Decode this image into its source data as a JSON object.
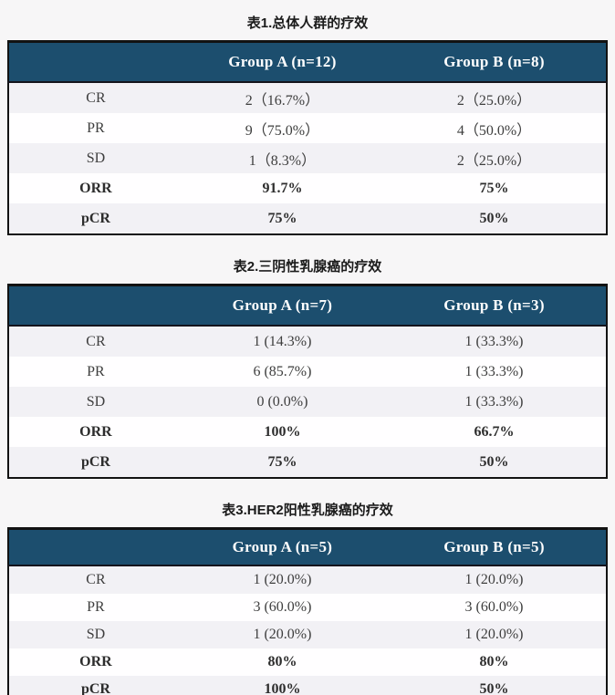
{
  "colors": {
    "page_background": "#f7f6f7",
    "header_background": "#1c4e6e",
    "header_text": "#ffffff",
    "row_alt_background": "#f2f1f5",
    "row_background": "#fffeff",
    "table_border": "#121212",
    "cell_text": "#3e3e3e",
    "title_text": "#1b1b1b"
  },
  "tables": [
    {
      "title": "表1.总体人群的疗效",
      "columns": [
        "",
        "Group A (n=12)",
        "Group B (n=8)"
      ],
      "rows": [
        {
          "label": "CR",
          "group_a": "2（16.7%）",
          "group_b": "2（25.0%）",
          "bold": false
        },
        {
          "label": "PR",
          "group_a": "9（75.0%）",
          "group_b": "4（50.0%）",
          "bold": false
        },
        {
          "label": "SD",
          "group_a": "1（8.3%）",
          "group_b": "2（25.0%）",
          "bold": false
        },
        {
          "label": "ORR",
          "group_a": "91.7%",
          "group_b": "75%",
          "bold": true
        },
        {
          "label": "pCR",
          "group_a": "75%",
          "group_b": "50%",
          "bold": true
        }
      ]
    },
    {
      "title": "表2.三阴性乳腺癌的疗效",
      "columns": [
        "",
        "Group A (n=7)",
        "Group B (n=3)"
      ],
      "rows": [
        {
          "label": "CR",
          "group_a": "1 (14.3%)",
          "group_b": "1 (33.3%)",
          "bold": false
        },
        {
          "label": "PR",
          "group_a": "6 (85.7%)",
          "group_b": "1 (33.3%)",
          "bold": false
        },
        {
          "label": "SD",
          "group_a": "0 (0.0%)",
          "group_b": "1 (33.3%)",
          "bold": false
        },
        {
          "label": "ORR",
          "group_a": "100%",
          "group_b": "66.7%",
          "bold": true
        },
        {
          "label": "pCR",
          "group_a": "75%",
          "group_b": "50%",
          "bold": true
        }
      ]
    },
    {
      "title": "表3.HER2阳性乳腺癌的疗效",
      "columns": [
        "",
        "Group A (n=5)",
        "Group B (n=5)"
      ],
      "rows": [
        {
          "label": "CR",
          "group_a": "1 (20.0%)",
          "group_b": "1 (20.0%)",
          "bold": false
        },
        {
          "label": "PR",
          "group_a": "3 (60.0%)",
          "group_b": "3 (60.0%)",
          "bold": false
        },
        {
          "label": "SD",
          "group_a": "1 (20.0%)",
          "group_b": "1 (20.0%)",
          "bold": false
        },
        {
          "label": "ORR",
          "group_a": "80%",
          "group_b": "80%",
          "bold": true
        },
        {
          "label": "pCR",
          "group_a": "100%",
          "group_b": "50%",
          "bold": true
        }
      ]
    }
  ]
}
